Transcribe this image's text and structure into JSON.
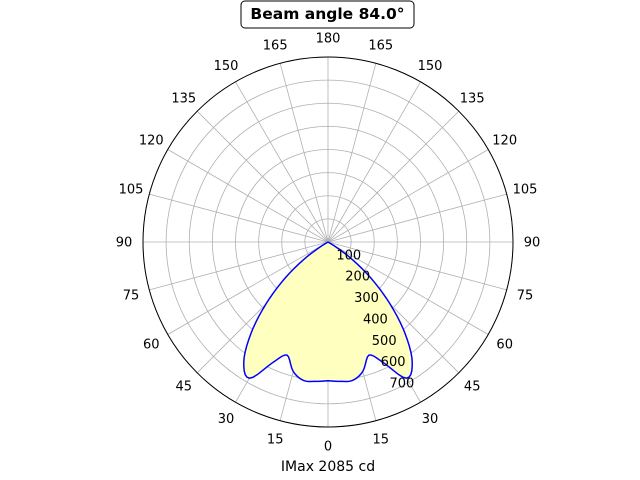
{
  "chart_data": {
    "type": "polar",
    "title": "Beam angle 84.0°",
    "xlabel": "IMax 2085 cd",
    "angle_ticks": [
      "180",
      "165",
      "150",
      "135",
      "120",
      "105",
      "90",
      "75",
      "60",
      "45",
      "30",
      "15",
      "0",
      "15",
      "30",
      "45",
      "60",
      "75",
      "90",
      "105",
      "120",
      "135",
      "150",
      "165"
    ],
    "radial_ticks": [
      "100",
      "200",
      "300",
      "400",
      "500",
      "600",
      "700"
    ],
    "rlim": [
      0,
      800
    ],
    "grid": true,
    "fill_color": "#ffffbf",
    "line_color": "#0000ff",
    "series": [
      {
        "unit": "deg",
        "angles": [
          0,
          5,
          10,
          15,
          20,
          25,
          30,
          35,
          40,
          45,
          50,
          55,
          60
        ],
        "values": [
          600,
          605,
          608,
          580,
          520,
          580,
          680,
          635,
          520,
          380,
          240,
          110,
          0
        ]
      }
    ]
  }
}
